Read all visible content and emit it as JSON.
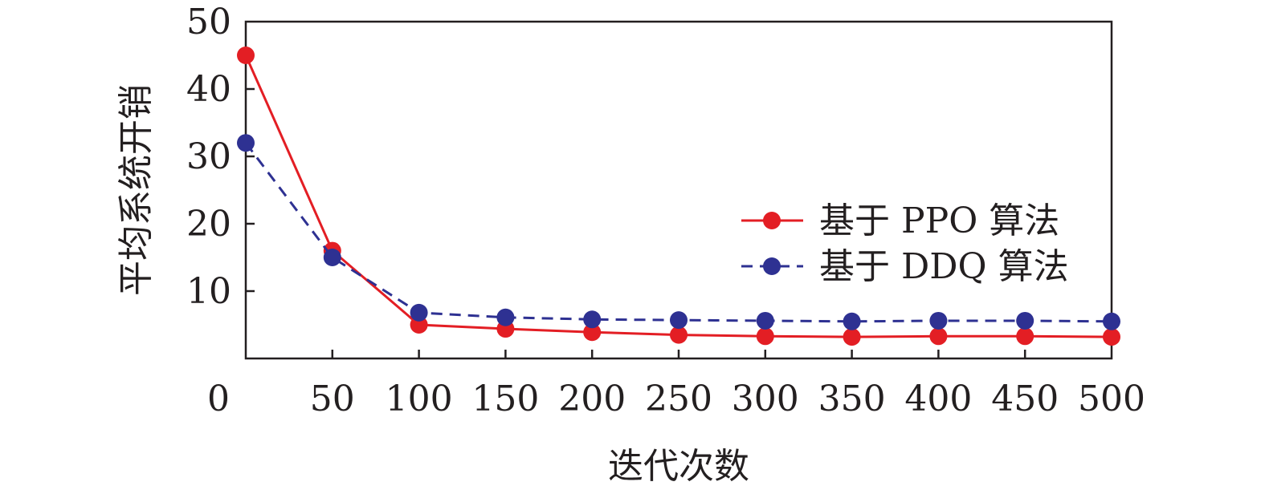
{
  "chart_data": {
    "type": "line",
    "title": "",
    "xlabel": "迭代次数",
    "ylabel": "平均系统开销",
    "x_ticks": [
      0,
      50,
      100,
      150,
      200,
      250,
      300,
      350,
      400,
      450,
      500
    ],
    "x_tick_labels": [
      "0",
      "50",
      "100",
      "150",
      "200",
      "250",
      "300",
      "350",
      "400",
      "450",
      "500"
    ],
    "y_ticks": [
      10,
      20,
      30,
      40,
      50
    ],
    "y_tick_labels": [
      "10",
      "20",
      "30",
      "40",
      "50"
    ],
    "xlim": [
      0,
      500
    ],
    "ylim": [
      0,
      50
    ],
    "grid": false,
    "legend_position": "right",
    "x": [
      0,
      50,
      100,
      150,
      200,
      250,
      300,
      350,
      400,
      450,
      500
    ],
    "series": [
      {
        "name": "基于 PPO 算法",
        "color": "#e31e24",
        "line_style": "solid",
        "marker": "circle",
        "values": [
          45,
          16,
          5,
          4.4,
          3.9,
          3.5,
          3.3,
          3.2,
          3.3,
          3.3,
          3.2
        ]
      },
      {
        "name": "基于 DDQ 算法",
        "color": "#2e3192",
        "line_style": "dashed",
        "marker": "circle",
        "values": [
          32,
          15,
          6.8,
          6.1,
          5.8,
          5.7,
          5.6,
          5.5,
          5.6,
          5.6,
          5.5
        ]
      }
    ]
  }
}
